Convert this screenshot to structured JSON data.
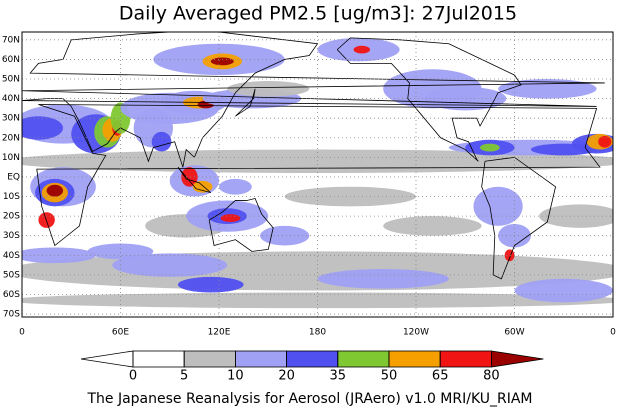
{
  "map": {
    "title": "Daily Averaged PM2.5 [ug/m3]: 27Jul2015",
    "lonlim": [
      0,
      360
    ],
    "latlim": [
      -71.5,
      74
    ],
    "lat_ticks": [
      {
        "value": 70,
        "label": "70N"
      },
      {
        "value": 60,
        "label": "60N"
      },
      {
        "value": 50,
        "label": "50N"
      },
      {
        "value": 40,
        "label": "40N"
      },
      {
        "value": 30,
        "label": "30N"
      },
      {
        "value": 20,
        "label": "20N"
      },
      {
        "value": 10,
        "label": "10N"
      },
      {
        "value": 0,
        "label": "EQ"
      },
      {
        "value": -10,
        "label": "10S"
      },
      {
        "value": -20,
        "label": "20S"
      },
      {
        "value": -30,
        "label": "30S"
      },
      {
        "value": -40,
        "label": "40S"
      },
      {
        "value": -50,
        "label": "50S"
      },
      {
        "value": -60,
        "label": "60S"
      },
      {
        "value": -70,
        "label": "70S"
      }
    ],
    "lon_ticks": [
      {
        "value": 0,
        "label": "0"
      },
      {
        "value": 60,
        "label": "60E"
      },
      {
        "value": 120,
        "label": "120E"
      },
      {
        "value": 180,
        "label": "180"
      },
      {
        "value": 240,
        "label": "120W"
      },
      {
        "value": 300,
        "label": "60W"
      },
      {
        "value": 360,
        "label": "0"
      }
    ],
    "grid": true,
    "colorbar": {
      "levels": [
        0,
        5,
        10,
        20,
        35,
        50,
        65,
        80
      ],
      "colors": [
        "#ffffff",
        "#ffffff",
        "#bebebe",
        "#a0a0f5",
        "#5050f0",
        "#80c832",
        "#f5a000",
        "#f01414",
        "#9b0000"
      ]
    },
    "footer": "The Japanese Reanalysis for Aerosol (JRAero) v1.0 MRI/KU_RIAM"
  }
}
